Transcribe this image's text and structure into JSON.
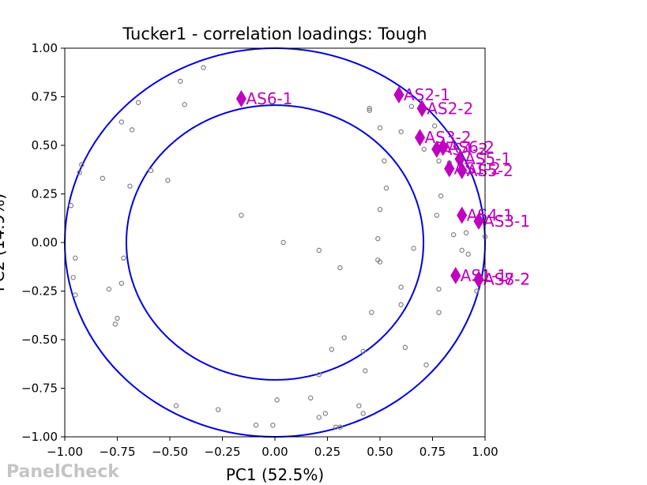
{
  "chart_data": {
    "type": "scatter",
    "title": "Tucker1 - correlation loadings: Tough",
    "xlabel": "PC1 (52.5%)",
    "ylabel": "PC2 (14.9%)",
    "xlim": [
      -1.0,
      1.0
    ],
    "ylim": [
      -1.0,
      1.0
    ],
    "xticks": [
      "−1.00",
      "−0.75",
      "−0.50",
      "−0.25",
      "0.00",
      "0.25",
      "0.50",
      "0.75",
      "1.00"
    ],
    "yticks": [
      "−1.00",
      "−0.75",
      "−0.50",
      "−0.25",
      "0.00",
      "0.25",
      "0.50",
      "0.75",
      "1.00"
    ],
    "grid": false,
    "circles": [
      {
        "radius": 1.0,
        "color": "#0000dd"
      },
      {
        "radius": 0.707,
        "color": "#0000dd"
      }
    ],
    "series": [
      {
        "marker": "open-circle",
        "color": "#808080",
        "points": [
          [
            -0.45,
            0.83
          ],
          [
            -0.34,
            0.9
          ],
          [
            -0.65,
            0.72
          ],
          [
            -0.43,
            0.71
          ],
          [
            -0.73,
            0.62
          ],
          [
            -0.68,
            0.58
          ],
          [
            -0.92,
            0.4
          ],
          [
            -0.93,
            0.36
          ],
          [
            -0.82,
            0.33
          ],
          [
            -0.59,
            0.37
          ],
          [
            -0.69,
            0.29
          ],
          [
            -0.51,
            0.32
          ],
          [
            -0.97,
            0.19
          ],
          [
            -0.16,
            0.14
          ],
          [
            0.04,
            0.0
          ],
          [
            -0.95,
            -0.08
          ],
          [
            -0.72,
            -0.08
          ],
          [
            -0.96,
            -0.18
          ],
          [
            -0.73,
            -0.21
          ],
          [
            -0.95,
            -0.27
          ],
          [
            -0.79,
            -0.24
          ],
          [
            -0.75,
            -0.39
          ],
          [
            -0.76,
            -0.42
          ],
          [
            0.21,
            -0.04
          ],
          [
            0.31,
            -0.13
          ],
          [
            0.27,
            -0.55
          ],
          [
            0.33,
            -0.49
          ],
          [
            0.42,
            -0.56
          ],
          [
            0.43,
            -0.66
          ],
          [
            0.21,
            -0.68
          ],
          [
            0.46,
            -0.36
          ],
          [
            0.49,
            0.02
          ],
          [
            0.49,
            -0.09
          ],
          [
            0.5,
            -0.1
          ],
          [
            0.5,
            0.17
          ],
          [
            0.53,
            0.28
          ],
          [
            0.52,
            0.42
          ],
          [
            0.5,
            0.59
          ],
          [
            0.45,
            0.69
          ],
          [
            0.45,
            0.68
          ],
          [
            0.65,
            0.7
          ],
          [
            0.6,
            0.57
          ],
          [
            0.66,
            -0.03
          ],
          [
            0.6,
            -0.23
          ],
          [
            0.6,
            -0.32
          ],
          [
            0.62,
            -0.54
          ],
          [
            0.72,
            -0.63
          ],
          [
            0.77,
            0.14
          ],
          [
            0.78,
            -0.24
          ],
          [
            0.79,
            0.24
          ],
          [
            0.78,
            -0.36
          ],
          [
            0.71,
            0.48
          ],
          [
            0.76,
            0.6
          ],
          [
            0.78,
            0.42
          ],
          [
            0.83,
            0.41
          ],
          [
            0.85,
            0.04
          ],
          [
            0.89,
            -0.04
          ],
          [
            0.91,
            0.05
          ],
          [
            0.92,
            -0.06
          ],
          [
            0.96,
            -0.25
          ],
          [
            1.0,
            0.03
          ],
          [
            -0.47,
            -0.84
          ],
          [
            -0.27,
            -0.86
          ],
          [
            -0.09,
            -0.94
          ],
          [
            0.01,
            -0.81
          ],
          [
            -0.01,
            -0.94
          ],
          [
            0.17,
            -0.8
          ],
          [
            0.21,
            -0.9
          ],
          [
            0.24,
            -0.88
          ],
          [
            0.29,
            -0.95
          ],
          [
            0.31,
            -0.95
          ],
          [
            0.4,
            -0.84
          ],
          [
            0.42,
            -0.88
          ]
        ]
      },
      {
        "marker": "diamond",
        "color": "#bf00bf",
        "points": [
          {
            "label": "AS6-1",
            "x": -0.16,
            "y": 0.74
          },
          {
            "label": "AS2-1",
            "x": 0.59,
            "y": 0.76
          },
          {
            "label": "AS2-2",
            "x": 0.7,
            "y": 0.69
          },
          {
            "label": "AS3-2",
            "x": 0.69,
            "y": 0.54
          },
          {
            "label": "AS4-2",
            "x": 0.77,
            "y": 0.48
          },
          {
            "label": "AS6-2",
            "x": 0.8,
            "y": 0.49
          },
          {
            "label": "AS5-1",
            "x": 0.88,
            "y": 0.43
          },
          {
            "label": "AS1-2",
            "x": 0.83,
            "y": 0.38
          },
          {
            "label": "AS5-2",
            "x": 0.89,
            "y": 0.37
          },
          {
            "label": "AS4-1",
            "x": 0.89,
            "y": 0.14
          },
          {
            "label": "AS3-1",
            "x": 0.97,
            "y": 0.11
          },
          {
            "label": "AS1-1",
            "x": 0.86,
            "y": -0.17
          },
          {
            "label": "AS7-2",
            "x": 0.97,
            "y": -0.19
          },
          {
            "label": "AS8-2",
            "x": 0.97,
            "y": -0.19
          }
        ]
      }
    ]
  },
  "watermark": "PanelCheck"
}
